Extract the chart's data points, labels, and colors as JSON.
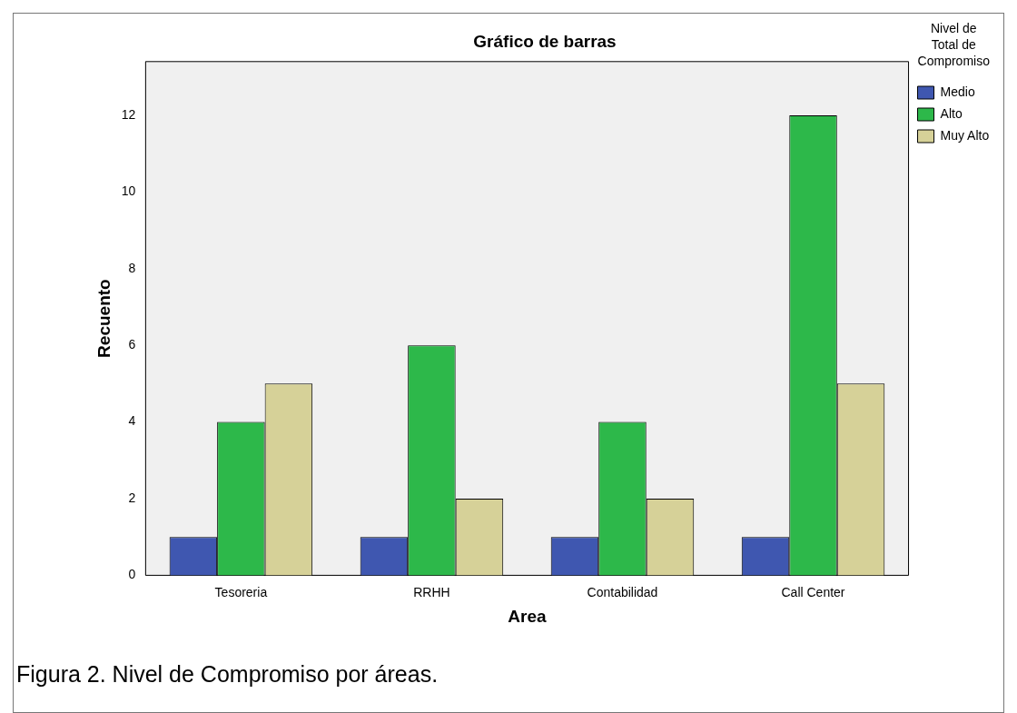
{
  "chart_data": {
    "type": "bar",
    "title": "Gráfico de barras",
    "xlabel": "Area",
    "ylabel": "Recuento",
    "legend_title": "Nivel de Total de Compromiso",
    "categories": [
      "Tesoreria",
      "RRHH",
      "Contabilidad",
      "Call Center"
    ],
    "series": [
      {
        "name": "Medio",
        "color": "#3f57b0",
        "values": [
          1,
          1,
          1,
          1
        ]
      },
      {
        "name": "Alto",
        "color": "#2db84a",
        "values": [
          4,
          6,
          4,
          12
        ]
      },
      {
        "name": "Muy Alto",
        "color": "#d6d198",
        "values": [
          5,
          2,
          2,
          5
        ]
      }
    ],
    "ylim": [
      0,
      13.4
    ],
    "yticks": [
      0,
      2,
      4,
      6,
      8,
      10,
      12
    ],
    "grid": false,
    "legend": "top right",
    "annotations": [
      "Figura 2. Nivel de Compromiso por áreas."
    ]
  }
}
